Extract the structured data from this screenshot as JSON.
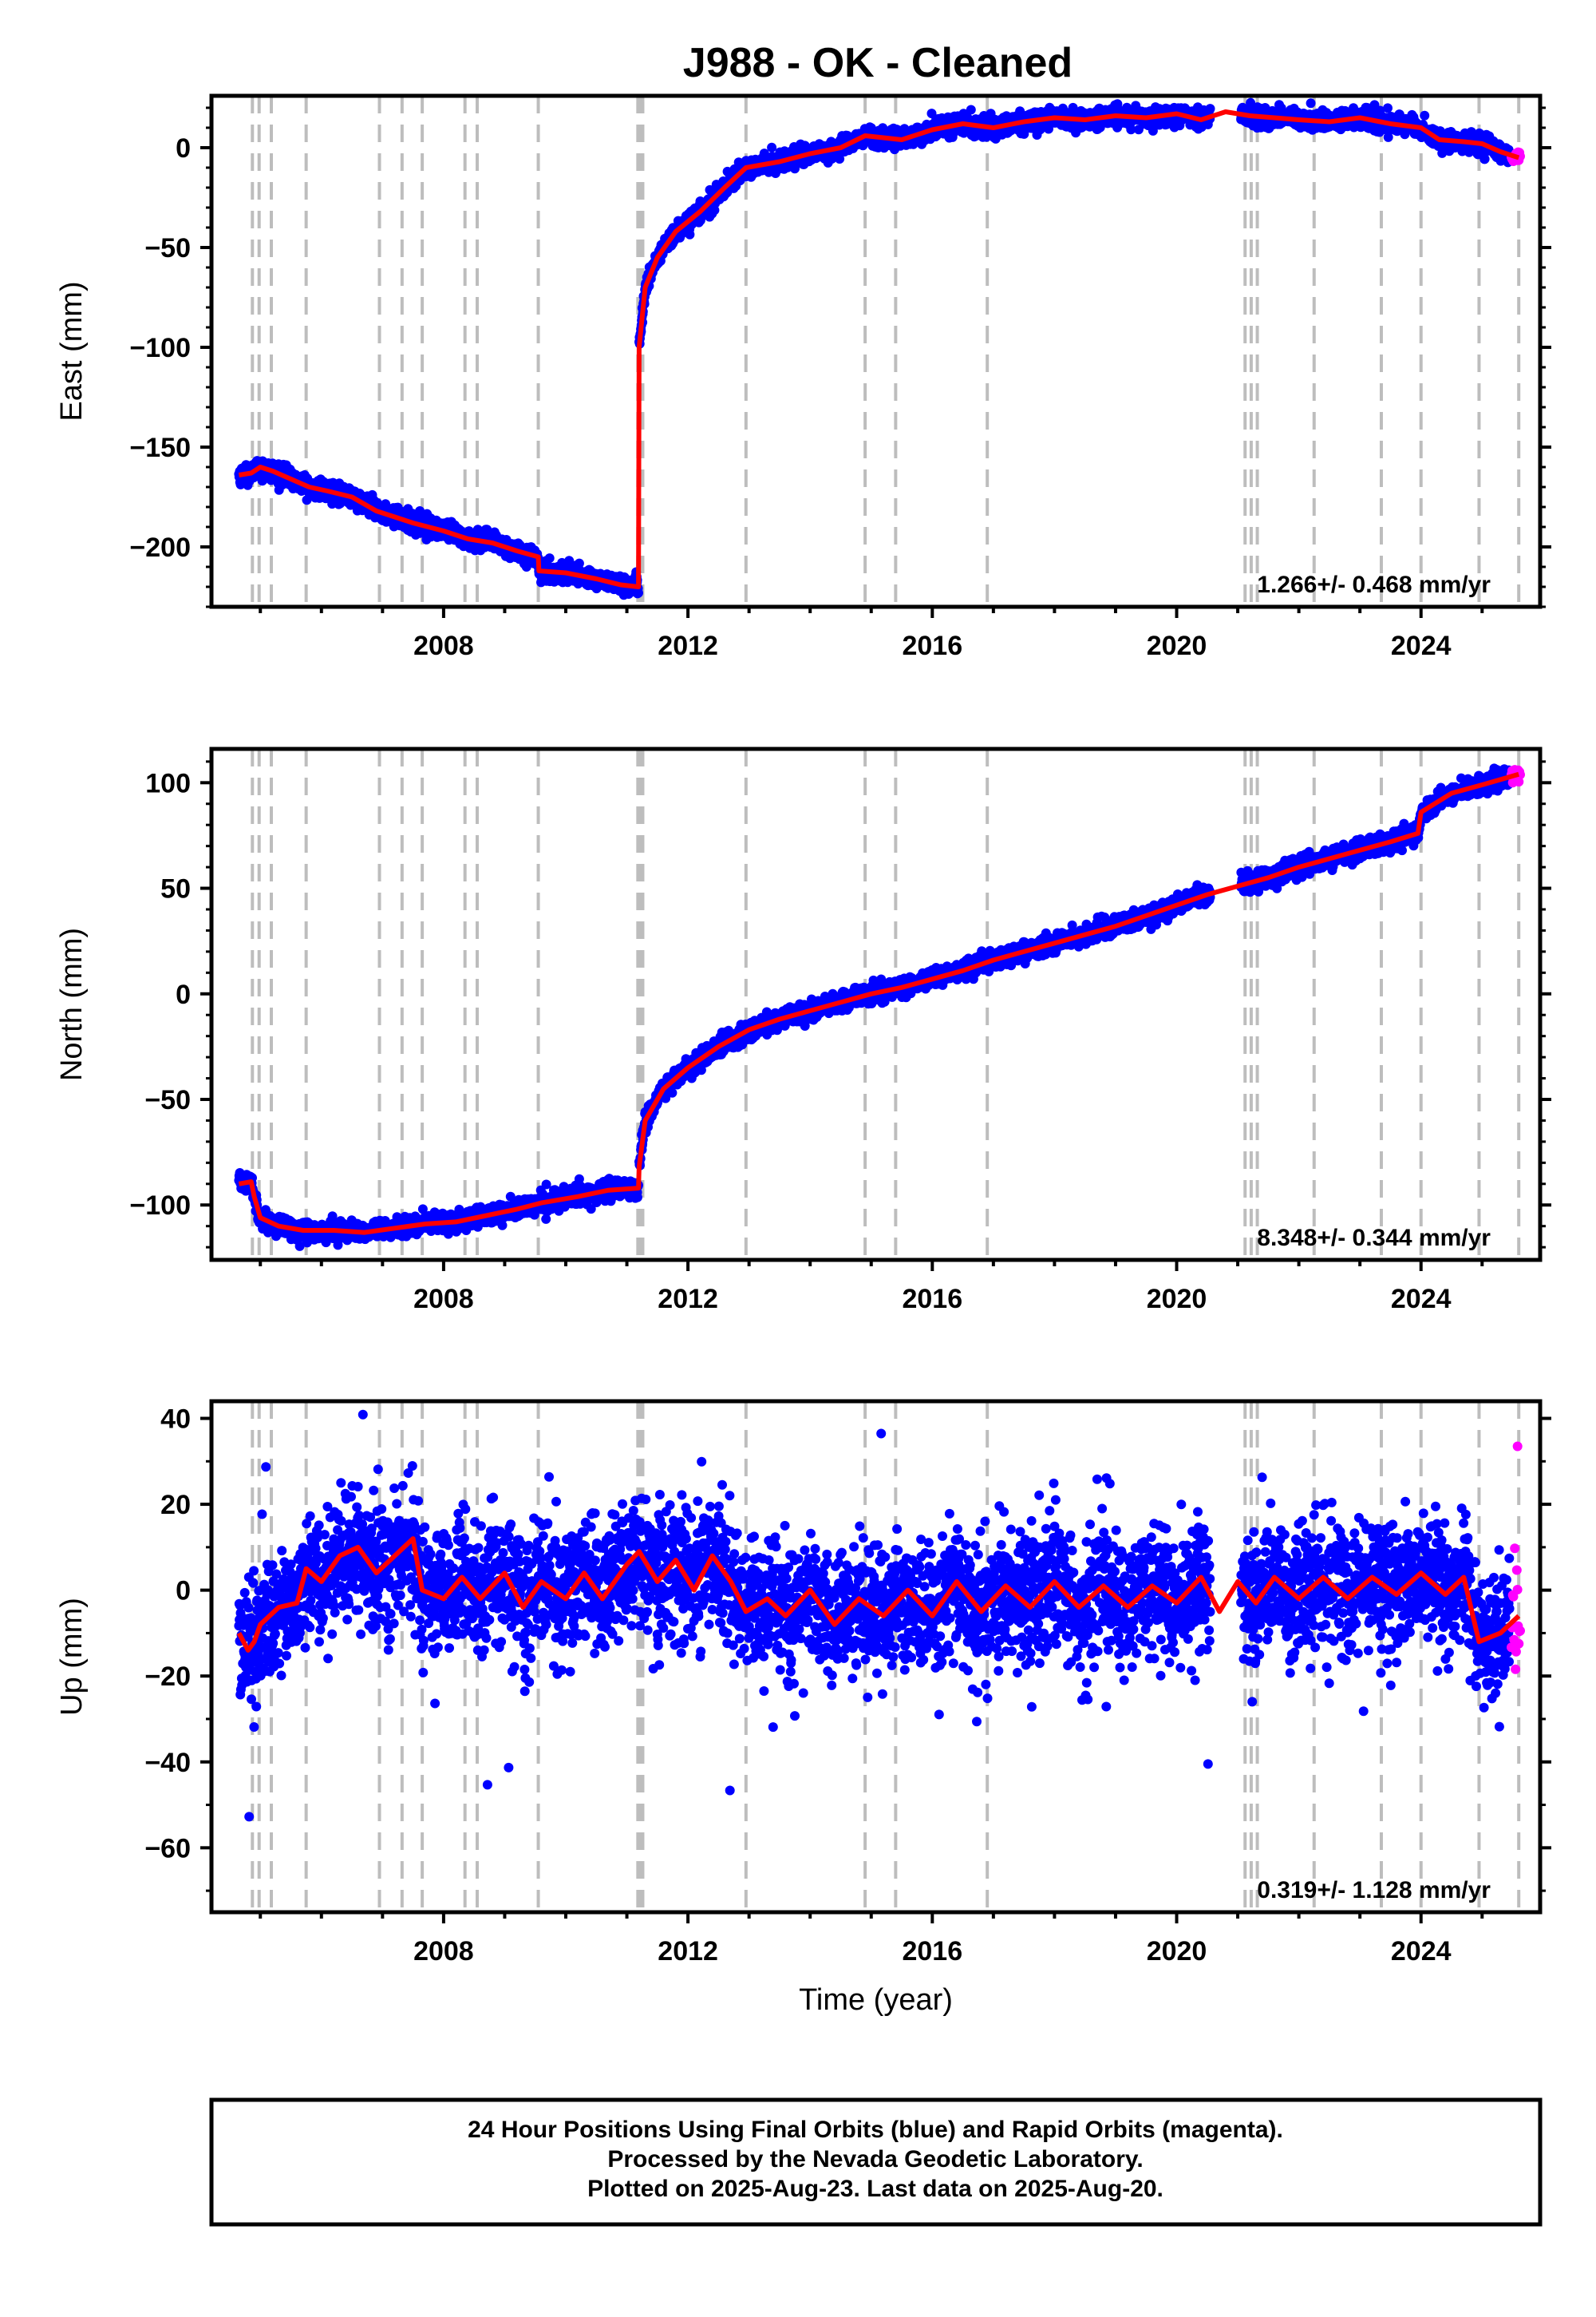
{
  "title": "J988  - OK - Cleaned",
  "footer": {
    "lines": [
      "24 Hour Positions Using Final Orbits (blue) and Rapid Orbits (magenta).",
      "Processed by the Nevada Geodetic Laboratory.",
      "Plotted on 2025-Aug-23. Last data on 2025-Aug-20."
    ]
  },
  "colors": {
    "final_orbits": "#0000ff",
    "rapid_orbits": "#ff00ff",
    "model": "#ff0000",
    "event_lines": "#bdbdbd",
    "frame": "#000000"
  },
  "chart_data": [
    {
      "type": "scatter",
      "name": "east",
      "ylabel": "East (mm)",
      "xlabel": "",
      "xlim": [
        2004.2,
        2025.95
      ],
      "ylim": [
        -230,
        26
      ],
      "yticks": [
        0,
        -50,
        -100,
        -150,
        -200
      ],
      "xticks": [
        2008,
        2012,
        2016,
        2020,
        2024
      ],
      "rate_label": "1.266+/- 0.468 mm/yr",
      "event_lines": [
        2004.87,
        2004.98,
        2005.18,
        2005.75,
        2006.95,
        2007.32,
        2007.65,
        2008.35,
        2008.55,
        2009.55,
        2011.18,
        2011.22,
        2011.26,
        2012.95,
        2014.9,
        2015.4,
        2016.9,
        2021.12,
        2021.22,
        2021.32,
        2022.25,
        2023.35,
        2024.0,
        2024.95,
        2025.6
      ],
      "series": [
        {
          "name": "model",
          "x": [
            2004.65,
            2004.85,
            2005.0,
            2005.2,
            2005.5,
            2005.8,
            2006.1,
            2006.5,
            2006.9,
            2007.2,
            2007.5,
            2008.0,
            2008.4,
            2008.8,
            2009.2,
            2009.55,
            2009.56,
            2010.0,
            2010.5,
            2010.9,
            2011.19,
            2011.2,
            2011.3,
            2011.5,
            2011.8,
            2012.2,
            2012.6,
            2012.95,
            2013.5,
            2014.0,
            2014.5,
            2014.9,
            2015.5,
            2016.0,
            2016.5,
            2017.0,
            2017.5,
            2018.0,
            2018.5,
            2019.0,
            2019.5,
            2020.0,
            2020.4,
            2020.8,
            2021.2,
            2021.6,
            2022.0,
            2022.5,
            2023.0,
            2023.5,
            2024.0,
            2024.3,
            2024.7,
            2025.0,
            2025.3,
            2025.6
          ],
          "y": [
            -164,
            -163,
            -160,
            -162,
            -166,
            -170,
            -172,
            -175,
            -182,
            -185,
            -188,
            -192,
            -196,
            -198,
            -202,
            -205,
            -212,
            -213,
            -216,
            -219,
            -220,
            -100,
            -70,
            -55,
            -42,
            -32,
            -20,
            -10,
            -7,
            -3,
            0,
            6,
            4,
            9,
            12,
            10,
            13,
            15,
            14,
            16,
            15,
            17,
            14,
            18,
            16,
            15,
            14,
            13,
            15,
            12,
            10,
            4,
            3,
            2,
            -2,
            -5
          ]
        }
      ]
    },
    {
      "type": "scatter",
      "name": "north",
      "ylabel": "North (mm)",
      "xlabel": "",
      "xlim": [
        2004.2,
        2025.95
      ],
      "ylim": [
        -126,
        116
      ],
      "yticks": [
        100,
        50,
        0,
        -50,
        -100
      ],
      "xticks": [
        2008,
        2012,
        2016,
        2020,
        2024
      ],
      "rate_label": "8.348+/- 0.344 mm/yr",
      "event_lines": [
        2004.87,
        2004.98,
        2005.18,
        2005.75,
        2006.95,
        2007.32,
        2007.65,
        2008.35,
        2008.55,
        2009.55,
        2011.18,
        2011.22,
        2011.26,
        2012.95,
        2014.9,
        2015.4,
        2016.9,
        2021.12,
        2021.22,
        2021.32,
        2022.25,
        2023.35,
        2024.0,
        2024.95,
        2025.6
      ],
      "series": [
        {
          "name": "model",
          "x": [
            2004.65,
            2004.85,
            2004.9,
            2005.0,
            2005.3,
            2005.7,
            2006.2,
            2006.7,
            2007.2,
            2007.7,
            2008.2,
            2008.7,
            2009.2,
            2009.6,
            2010.2,
            2010.7,
            2011.19,
            2011.2,
            2011.3,
            2011.6,
            2012.0,
            2012.5,
            2013.0,
            2013.5,
            2014.0,
            2014.5,
            2015.0,
            2015.5,
            2016.0,
            2016.5,
            2017.0,
            2017.5,
            2018.0,
            2018.5,
            2019.0,
            2019.5,
            2020.0,
            2020.5,
            2021.0,
            2021.5,
            2022.0,
            2022.5,
            2023.0,
            2023.5,
            2023.95,
            2024.0,
            2024.5,
            2025.0,
            2025.6
          ],
          "y": [
            -90,
            -89,
            -96,
            -106,
            -110,
            -112,
            -112,
            -113,
            -111,
            -109,
            -108,
            -105,
            -102,
            -99,
            -96,
            -93,
            -92,
            -82,
            -60,
            -45,
            -35,
            -25,
            -17,
            -12,
            -8,
            -4,
            0,
            3,
            7,
            11,
            16,
            20,
            24,
            28,
            32,
            37,
            42,
            47,
            51,
            55,
            60,
            64,
            68,
            72,
            76,
            86,
            95,
            99,
            104
          ]
        }
      ]
    },
    {
      "type": "scatter",
      "name": "up",
      "ylabel": "Up (mm)",
      "xlabel": "Time (year)",
      "xlim": [
        2004.2,
        2025.95
      ],
      "ylim": [
        -75,
        44
      ],
      "yticks": [
        40,
        20,
        0,
        -20,
        -40,
        -60
      ],
      "xticks": [
        2008,
        2012,
        2016,
        2020,
        2024
      ],
      "rate_label": "0.319+/- 1.128 mm/yr",
      "event_lines": [
        2004.87,
        2004.98,
        2005.18,
        2005.75,
        2006.95,
        2007.32,
        2007.65,
        2008.35,
        2008.55,
        2009.55,
        2011.18,
        2011.22,
        2011.26,
        2012.95,
        2014.9,
        2015.4,
        2016.9,
        2021.12,
        2021.22,
        2021.32,
        2022.25,
        2023.35,
        2024.0,
        2024.95,
        2025.6
      ],
      "series": [
        {
          "name": "model",
          "x": [
            2004.65,
            2004.8,
            2004.9,
            2005.0,
            2005.3,
            2005.6,
            2005.75,
            2006.0,
            2006.3,
            2006.6,
            2006.9,
            2007.2,
            2007.5,
            2007.65,
            2008.0,
            2008.3,
            2008.6,
            2009.0,
            2009.3,
            2009.6,
            2010.0,
            2010.3,
            2010.6,
            2011.0,
            2011.2,
            2011.5,
            2011.8,
            2012.1,
            2012.4,
            2012.7,
            2012.95,
            2013.3,
            2013.6,
            2014.0,
            2014.4,
            2014.8,
            2015.2,
            2015.6,
            2016.0,
            2016.4,
            2016.8,
            2017.2,
            2017.6,
            2018.0,
            2018.4,
            2018.8,
            2019.2,
            2019.6,
            2020.0,
            2020.4,
            2020.7,
            2021.0,
            2021.3,
            2021.6,
            2022.0,
            2022.4,
            2022.8,
            2023.2,
            2023.6,
            2024.0,
            2024.4,
            2024.7,
            2024.95,
            2025.3,
            2025.6
          ],
          "y": [
            -10,
            -14,
            -12,
            -8,
            -4,
            -3,
            5,
            2,
            8,
            10,
            4,
            8,
            12,
            0,
            -2,
            3,
            -2,
            4,
            -4,
            2,
            -2,
            4,
            -2,
            6,
            9,
            2,
            7,
            0,
            8,
            2,
            -5,
            -2,
            -6,
            0,
            -8,
            -2,
            -6,
            0,
            -6,
            2,
            -5,
            1,
            -4,
            2,
            -4,
            1,
            -4,
            1,
            -3,
            3,
            -5,
            2,
            -3,
            3,
            -2,
            3,
            -2,
            3,
            -1,
            4,
            -1,
            3,
            -12,
            -10,
            -6
          ]
        }
      ]
    }
  ]
}
